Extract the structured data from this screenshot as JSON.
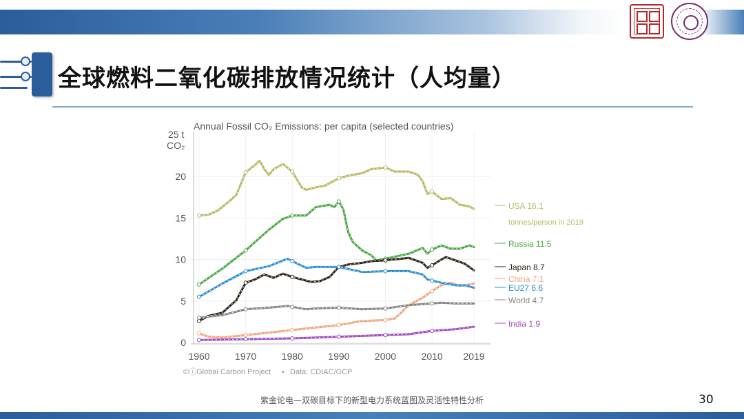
{
  "slide": {
    "title": "全球燃料二氧化碳排放情况统计（人均量）",
    "footer": "紫金论电—双碳目标下的新型电力系统蓝图及灵活性特性分析",
    "page_number": "30"
  },
  "colors": {
    "header_blue": "#2a5d9a",
    "rule": "#7fa9c9"
  },
  "chart_data": {
    "type": "line",
    "title": "Annual Fossil CO₂ Emissions: per capita (selected countries)",
    "ylabel_line1": "25 t",
    "ylabel_line2": "CO₂",
    "xlim": [
      1960,
      2019
    ],
    "ylim": [
      0,
      25
    ],
    "x_ticks": [
      1960,
      1970,
      1980,
      1990,
      2000,
      2010,
      2019
    ],
    "y_ticks": [
      0,
      5,
      10,
      15,
      20
    ],
    "grid": true,
    "credit_left": "©ⓘGlobal Carbon Project",
    "credit_right": "Data: CDIAC/GCP",
    "credit_sep": "•",
    "series": [
      {
        "name": "USA",
        "label_value": "16.1",
        "sublabel": "tonnes/person in 2019",
        "color": "#b8b864",
        "x": [
          1960,
          1962,
          1964,
          1966,
          1968,
          1970,
          1972,
          1973,
          1974,
          1975,
          1976,
          1978,
          1980,
          1982,
          1983,
          1985,
          1987,
          1990,
          1992,
          1995,
          1997,
          2000,
          2002,
          2005,
          2007,
          2008,
          2009,
          2010,
          2012,
          2014,
          2016,
          2018,
          2019
        ],
        "y": [
          15.3,
          15.4,
          15.9,
          16.8,
          17.8,
          20.5,
          21.4,
          21.9,
          20.9,
          20.2,
          20.9,
          21.5,
          20.6,
          18.7,
          18.4,
          18.7,
          18.9,
          19.8,
          20.1,
          20.4,
          20.9,
          21.1,
          20.6,
          20.6,
          20.2,
          19.4,
          17.9,
          18.2,
          17.3,
          17.4,
          16.6,
          16.4,
          16.1
        ]
      },
      {
        "name": "Russia",
        "label_value": "11.5",
        "color": "#4aa843",
        "x": [
          1960,
          1965,
          1970,
          1975,
          1978,
          1980,
          1983,
          1985,
          1988,
          1989,
          1990,
          1991,
          1992,
          1993,
          1995,
          1997,
          1998,
          2000,
          2005,
          2008,
          2009,
          2010,
          2012,
          2014,
          2016,
          2018,
          2019
        ],
        "y": [
          7.0,
          8.9,
          11.1,
          13.6,
          14.9,
          15.3,
          15.3,
          16.3,
          16.6,
          16.3,
          17.0,
          16.0,
          13.3,
          12.1,
          11.1,
          10.5,
          9.9,
          10.1,
          10.7,
          11.4,
          10.7,
          11.2,
          11.7,
          11.3,
          11.3,
          11.7,
          11.5
        ]
      },
      {
        "name": "Japan",
        "label_value": "8.7",
        "color": "#2f2418",
        "x": [
          1960,
          1962,
          1965,
          1968,
          1970,
          1972,
          1974,
          1976,
          1978,
          1980,
          1982,
          1984,
          1986,
          1988,
          1990,
          1992,
          1995,
          1997,
          2000,
          2005,
          2008,
          2009,
          2010,
          2012,
          2013,
          2015,
          2017,
          2019
        ],
        "y": [
          2.6,
          3.2,
          3.6,
          5.1,
          7.2,
          7.6,
          8.2,
          7.8,
          8.3,
          7.9,
          7.6,
          7.3,
          7.4,
          7.9,
          9.1,
          9.4,
          9.6,
          9.8,
          9.9,
          10.2,
          9.6,
          9.0,
          9.3,
          10.0,
          10.3,
          9.9,
          9.5,
          8.7
        ]
      },
      {
        "name": "China",
        "label_value": "7.1",
        "color": "#f2a582",
        "x": [
          1960,
          1962,
          1965,
          1970,
          1975,
          1980,
          1985,
          1990,
          1995,
          2000,
          2002,
          2003,
          2005,
          2008,
          2010,
          2012,
          2014,
          2016,
          2019
        ],
        "y": [
          1.1,
          0.7,
          0.6,
          0.9,
          1.2,
          1.5,
          1.8,
          2.1,
          2.6,
          2.7,
          2.9,
          3.4,
          4.5,
          5.4,
          6.2,
          6.9,
          7.2,
          6.8,
          7.1
        ]
      },
      {
        "name": "EU27",
        "label_value": "6.6",
        "color": "#2e8fd4",
        "x": [
          1960,
          1965,
          1970,
          1975,
          1979,
          1980,
          1983,
          1985,
          1990,
          1995,
          2000,
          2005,
          2008,
          2009,
          2012,
          2015,
          2017,
          2019
        ],
        "y": [
          5.5,
          7.1,
          8.6,
          9.2,
          10.1,
          9.8,
          9.0,
          9.1,
          9.1,
          8.5,
          8.6,
          8.6,
          8.2,
          7.6,
          7.2,
          6.9,
          6.9,
          6.6
        ]
      },
      {
        "name": "World",
        "label_value": "4.7",
        "color": "#858585",
        "x": [
          1960,
          1965,
          1970,
          1975,
          1979,
          1980,
          1983,
          1985,
          1990,
          1995,
          2000,
          2005,
          2010,
          2012,
          2015,
          2019
        ],
        "y": [
          3.0,
          3.3,
          4.0,
          4.2,
          4.4,
          4.3,
          4.0,
          4.1,
          4.2,
          4.0,
          4.1,
          4.5,
          4.7,
          4.8,
          4.7,
          4.7
        ]
      },
      {
        "name": "India",
        "label_value": "1.9",
        "color": "#a04ac0",
        "x": [
          1960,
          1970,
          1980,
          1990,
          2000,
          2005,
          2010,
          2015,
          2019
        ],
        "y": [
          0.3,
          0.4,
          0.5,
          0.7,
          0.9,
          1.0,
          1.4,
          1.6,
          1.9
        ]
      }
    ],
    "label_y": [
      16.1,
      11.5,
      8.7,
      7.1,
      6.6,
      4.7,
      1.9
    ]
  }
}
